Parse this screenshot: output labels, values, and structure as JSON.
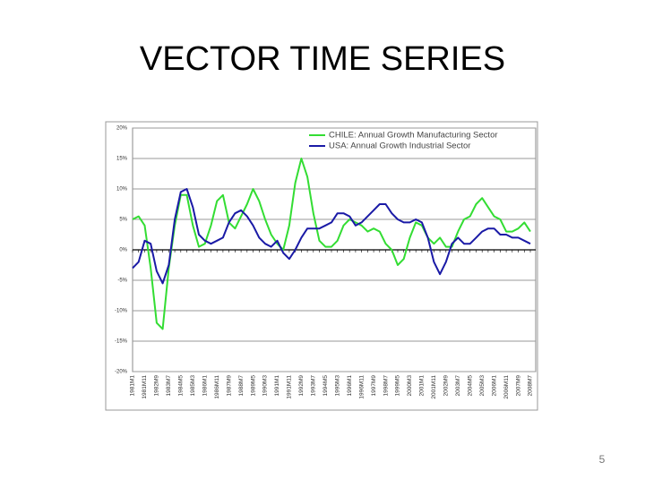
{
  "slide_title": "VECTOR TIME SERIES",
  "page_number": "5",
  "chart_data": {
    "type": "line",
    "categories": [
      "1981M1",
      null,
      "1981M11",
      null,
      "1982M9",
      null,
      "1983M7",
      null,
      "1984M5",
      null,
      "1985M3",
      null,
      "1986M1",
      null,
      "1986M11",
      null,
      "1987M9",
      null,
      "1988M7",
      null,
      "1989M5",
      null,
      "1990M3",
      null,
      "1991M1",
      null,
      "1991M11",
      null,
      "1992M9",
      null,
      "1993M7",
      null,
      "1994M5",
      null,
      "1995M3",
      null,
      "1996M1",
      null,
      "1996M11",
      null,
      "1997M9",
      null,
      "1998M7",
      null,
      "1999M5",
      null,
      "2000M3",
      null,
      "2001M1",
      null,
      "2001M11",
      null,
      "2002M9",
      null,
      "2003M7",
      null,
      "2004M5",
      null,
      "2005M3",
      null,
      "2006M1",
      null,
      "2006M11",
      null,
      "2007M9",
      null,
      "2008M7"
    ],
    "series": [
      {
        "name": "CHILE: Annual Growth Manufacturing Sector",
        "color": "#33dd33",
        "values": [
          5,
          5.5,
          4,
          -3,
          -12,
          -13,
          -3,
          4,
          9,
          9,
          4,
          0.5,
          1,
          4,
          8,
          9,
          4.5,
          3.5,
          5.5,
          7.5,
          10,
          8,
          5,
          2.5,
          1,
          0,
          4,
          11,
          15,
          12,
          6,
          1.5,
          0.5,
          0.5,
          1.5,
          4,
          5,
          4.5,
          4,
          3,
          3.5,
          3,
          1,
          0,
          -2.5,
          -1.5,
          2,
          4.5,
          4,
          2,
          1,
          2,
          0.5,
          0.5,
          3,
          5,
          5.5,
          7.5,
          8.5,
          7,
          5.5,
          5,
          3,
          3,
          3.5,
          4.5,
          3
        ]
      },
      {
        "name": "USA: Annual Growth Industrial Sector",
        "color": "#1a1aa6",
        "values": [
          -3,
          -2,
          1.5,
          1,
          -3.5,
          -5.5,
          -2.5,
          5,
          9.5,
          10,
          7,
          2.5,
          1.5,
          1,
          1.5,
          2,
          4.5,
          6,
          6.5,
          5.5,
          4,
          2,
          1,
          0.5,
          1.5,
          -0.5,
          -1.5,
          0,
          2,
          3.5,
          3.5,
          3.5,
          4,
          4.5,
          6,
          6,
          5.5,
          4,
          4.5,
          5.5,
          6.5,
          7.5,
          7.5,
          6,
          5,
          4.5,
          4.5,
          5,
          4.5,
          2,
          -2,
          -4,
          -2,
          1,
          2,
          1,
          1,
          2,
          3,
          3.5,
          3.5,
          2.5,
          2.5,
          2,
          2,
          1.5,
          1
        ]
      }
    ],
    "ylim": [
      -20,
      20
    ],
    "yticks": [
      {
        "value": 20,
        "label": "20%"
      },
      {
        "value": 15,
        "label": "15%"
      },
      {
        "value": 10,
        "label": "10%"
      },
      {
        "value": 5,
        "label": "5%"
      },
      {
        "value": 0,
        "label": "0%"
      },
      {
        "value": -5,
        "label": "-5%"
      },
      {
        "value": -10,
        "label": "-10%"
      },
      {
        "value": -15,
        "label": "-15%"
      },
      {
        "value": -20,
        "label": "-20%"
      }
    ],
    "grid": true,
    "legend": "upper-right"
  }
}
